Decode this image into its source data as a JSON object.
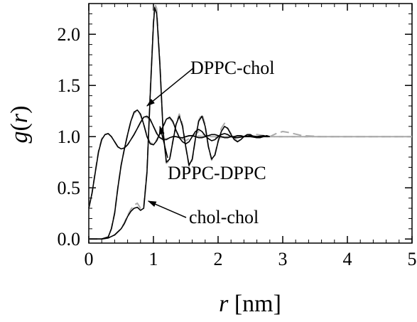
{
  "chart_data": {
    "type": "line",
    "title": "",
    "xlabel": "r [nm]",
    "ylabel": "g(r)",
    "xlim": [
      0,
      5
    ],
    "ylim": [
      -0.04,
      2.3
    ],
    "x_ticks": [
      0,
      1,
      2,
      3,
      4,
      5
    ],
    "y_ticks": [
      0.0,
      0.5,
      1.0,
      1.5,
      2.0
    ],
    "x_tick_labels": [
      "0",
      "1",
      "2",
      "3",
      "4",
      "5"
    ],
    "y_tick_labels": [
      "0.0",
      "0.5",
      "1.0",
      "1.5",
      "2.0"
    ],
    "grid": false,
    "legend": "none",
    "colors": {
      "simulation": "#000000",
      "fit": "#aaaaaa"
    },
    "annotations": [
      {
        "text": "DPPC-chol",
        "points_to": [
          0.9,
          1.3
        ]
      },
      {
        "text": "DPPC-DPPC",
        "points_to": [
          1.1,
          1.1
        ]
      },
      {
        "text": "chol-chol",
        "points_to": [
          0.92,
          0.37
        ]
      }
    ],
    "series": [
      {
        "role": "DPPC-DPPC",
        "style": "solid",
        "color": "#000000",
        "x": [
          0.0,
          0.05,
          0.1,
          0.15,
          0.2,
          0.25,
          0.3,
          0.35,
          0.4,
          0.45,
          0.5,
          0.55,
          0.6,
          0.65,
          0.7,
          0.75,
          0.8,
          0.85,
          0.9,
          0.95,
          1.0,
          1.05,
          1.1,
          1.15,
          1.2,
          1.25,
          1.3,
          1.35,
          1.4,
          1.45,
          1.5,
          1.55,
          1.6,
          1.65,
          1.7,
          1.75,
          1.8,
          1.85,
          1.9,
          1.95,
          2.0,
          2.05,
          2.1,
          2.15,
          2.2,
          2.25,
          2.3,
          2.35,
          2.4,
          2.5,
          2.6,
          2.7,
          2.78
        ],
        "y": [
          0.3,
          0.45,
          0.65,
          0.85,
          0.97,
          1.02,
          1.03,
          1.0,
          0.95,
          0.9,
          0.88,
          0.89,
          0.92,
          0.97,
          1.02,
          1.08,
          1.14,
          1.19,
          1.2,
          1.17,
          1.1,
          1.03,
          0.99,
          0.97,
          0.97,
          0.99,
          1.0,
          1.0,
          0.99,
          0.99,
          1.0,
          1.01,
          1.01,
          1.0,
          0.99,
          0.99,
          1.0,
          1.01,
          1.02,
          1.02,
          1.01,
          1.0,
          0.99,
          0.99,
          1.0,
          1.0,
          1.01,
          1.01,
          1.0,
          1.0,
          0.99,
          1.0,
          1.0
        ]
      },
      {
        "role": "DPPC-DPPC fit",
        "style": "dashed",
        "color": "#aaaaaa",
        "x": [
          0.0,
          0.05,
          0.1,
          0.15,
          0.2,
          0.25,
          0.3,
          0.35,
          0.4,
          0.45,
          0.5,
          0.55,
          0.6,
          0.65,
          0.7,
          0.75,
          0.8,
          0.85,
          0.9,
          0.95,
          1.0,
          1.05,
          1.1,
          1.15,
          1.2,
          1.25,
          1.3,
          1.35,
          1.4,
          1.5,
          1.6,
          1.8,
          2.0,
          2.2,
          2.5,
          2.8,
          3.0,
          3.3,
          3.6,
          4.0,
          4.5,
          5.0
        ],
        "y": [
          0.3,
          0.45,
          0.66,
          0.86,
          0.98,
          1.02,
          1.03,
          1.0,
          0.95,
          0.9,
          0.88,
          0.89,
          0.92,
          0.97,
          1.02,
          1.08,
          1.14,
          1.18,
          1.19,
          1.16,
          1.1,
          1.04,
          0.99,
          0.98,
          0.98,
          0.99,
          1.0,
          1.0,
          1.0,
          1.0,
          1.01,
          1.0,
          1.0,
          1.0,
          1.0,
          1.0,
          1.0,
          1.0,
          1.0,
          1.0,
          1.0,
          1.0
        ]
      },
      {
        "role": "DPPC-chol",
        "style": "solid",
        "color": "#000000",
        "x": [
          0.0,
          0.1,
          0.2,
          0.3,
          0.35,
          0.4,
          0.45,
          0.5,
          0.55,
          0.6,
          0.65,
          0.7,
          0.75,
          0.8,
          0.85,
          0.9,
          0.95,
          1.0,
          1.05,
          1.1,
          1.15,
          1.2,
          1.25,
          1.3,
          1.35,
          1.4,
          1.45,
          1.5,
          1.55,
          1.6,
          1.65,
          1.7,
          1.75,
          1.8,
          1.85,
          1.9,
          1.95,
          2.0,
          2.05,
          2.1,
          2.15,
          2.2,
          2.25,
          2.3,
          2.4,
          2.5,
          2.6,
          2.7,
          2.78
        ],
        "y": [
          0.0,
          0.0,
          0.0,
          0.02,
          0.1,
          0.25,
          0.5,
          0.72,
          0.88,
          1.02,
          1.15,
          1.24,
          1.26,
          1.22,
          1.12,
          1.0,
          0.93,
          0.92,
          0.96,
          1.03,
          1.1,
          1.17,
          1.19,
          1.15,
          1.06,
          0.99,
          0.95,
          0.93,
          0.95,
          1.0,
          1.05,
          1.07,
          1.05,
          1.01,
          0.98,
          0.96,
          0.97,
          1.0,
          1.02,
          1.03,
          1.02,
          1.0,
          0.99,
          0.99,
          1.0,
          1.01,
          1.0,
          1.01,
          1.0
        ]
      },
      {
        "role": "DPPC-chol fit",
        "style": "dashed",
        "color": "#aaaaaa",
        "x": [
          0.0,
          0.1,
          0.2,
          0.3,
          0.35,
          0.4,
          0.45,
          0.5,
          0.55,
          0.6,
          0.65,
          0.7,
          0.75,
          0.8,
          0.85,
          0.9,
          0.95,
          1.0,
          1.05,
          1.1,
          1.15,
          1.2,
          1.25,
          1.3,
          1.35,
          1.4,
          1.5,
          1.6,
          1.7,
          1.8,
          2.0,
          2.2,
          2.5,
          2.8,
          3.0,
          3.5,
          4.0,
          4.5,
          5.0
        ],
        "y": [
          0.0,
          0.0,
          0.0,
          0.02,
          0.1,
          0.26,
          0.5,
          0.72,
          0.88,
          1.02,
          1.15,
          1.23,
          1.25,
          1.21,
          1.12,
          1.01,
          0.94,
          0.93,
          0.97,
          1.03,
          1.1,
          1.16,
          1.18,
          1.14,
          1.06,
          1.0,
          0.96,
          1.0,
          1.05,
          1.01,
          0.99,
          1.0,
          1.0,
          1.0,
          1.0,
          1.0,
          1.0,
          1.0,
          1.0
        ]
      },
      {
        "role": "chol-chol",
        "style": "solid",
        "color": "#000000",
        "x": [
          0.0,
          0.1,
          0.2,
          0.3,
          0.4,
          0.5,
          0.55,
          0.6,
          0.65,
          0.7,
          0.75,
          0.8,
          0.85,
          0.9,
          0.95,
          1.0,
          1.02,
          1.05,
          1.1,
          1.15,
          1.2,
          1.25,
          1.3,
          1.35,
          1.4,
          1.45,
          1.5,
          1.55,
          1.6,
          1.65,
          1.7,
          1.75,
          1.8,
          1.85,
          1.9,
          1.95,
          2.0,
          2.05,
          2.1,
          2.15,
          2.2,
          2.25,
          2.3,
          2.35,
          2.4,
          2.45,
          2.5,
          2.55,
          2.6,
          2.65,
          2.7,
          2.75,
          2.8
        ],
        "y": [
          0.0,
          0.0,
          0.0,
          0.01,
          0.04,
          0.1,
          0.15,
          0.22,
          0.27,
          0.3,
          0.31,
          0.28,
          0.3,
          0.65,
          1.4,
          2.1,
          2.26,
          2.2,
          1.7,
          1.05,
          0.75,
          0.78,
          0.95,
          1.12,
          1.2,
          1.1,
          0.9,
          0.72,
          0.78,
          0.98,
          1.15,
          1.2,
          1.1,
          0.9,
          0.78,
          0.82,
          0.95,
          1.05,
          1.1,
          1.08,
          1.02,
          0.97,
          0.95,
          0.97,
          1.0,
          1.02,
          1.02,
          1.0,
          0.99,
          0.99,
          1.0,
          1.01,
          1.0
        ]
      },
      {
        "role": "chol-chol fit",
        "style": "dashed",
        "color": "#aaaaaa",
        "x": [
          0.0,
          0.1,
          0.2,
          0.3,
          0.4,
          0.5,
          0.55,
          0.6,
          0.65,
          0.7,
          0.75,
          0.8,
          0.85,
          0.9,
          0.95,
          1.0,
          1.02,
          1.05,
          1.1,
          1.15,
          1.2,
          1.25,
          1.3,
          1.35,
          1.4,
          1.45,
          1.5,
          1.55,
          1.6,
          1.65,
          1.7,
          1.75,
          1.8,
          1.85,
          1.9,
          1.95,
          2.0,
          2.05,
          2.1,
          2.2,
          2.3,
          2.4,
          2.6,
          2.8,
          2.9,
          3.0,
          3.1,
          3.3,
          3.6,
          4.0,
          4.5,
          5.0
        ],
        "y": [
          0.0,
          0.0,
          0.0,
          0.01,
          0.04,
          0.1,
          0.16,
          0.23,
          0.29,
          0.33,
          0.35,
          0.3,
          0.31,
          0.66,
          1.42,
          2.12,
          2.3,
          2.25,
          1.72,
          1.05,
          0.74,
          0.77,
          0.96,
          1.13,
          1.22,
          1.12,
          0.9,
          0.71,
          0.77,
          0.98,
          1.16,
          1.22,
          1.12,
          0.9,
          0.77,
          0.82,
          0.96,
          1.08,
          1.13,
          1.03,
          0.95,
          1.0,
          1.02,
          1.0,
          1.03,
          1.05,
          1.04,
          1.01,
          1.0,
          1.0,
          1.0,
          1.0
        ]
      }
    ]
  }
}
